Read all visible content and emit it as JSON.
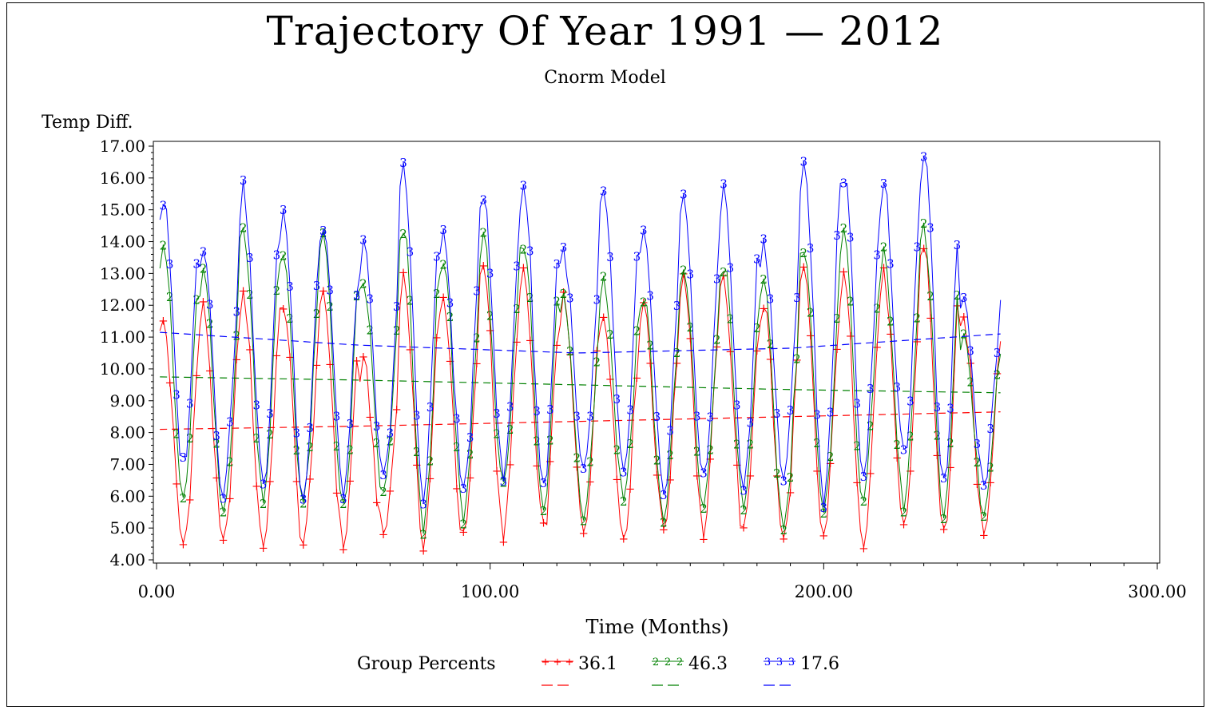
{
  "chart_data": {
    "type": "line",
    "title": "Trajectory Of Year 1991 — 2012",
    "subtitle": "Cnorm Model",
    "ylabel": "Temp Diff.",
    "xlabel": "Time (Months)",
    "xlim": [
      0,
      300
    ],
    "ylim": [
      4,
      17
    ],
    "xticks": [
      "0.00",
      "100.00",
      "200.00",
      "300.00"
    ],
    "yticks": [
      "4.00",
      "5.00",
      "6.00",
      "7.00",
      "8.00",
      "9.00",
      "10.00",
      "11.00",
      "12.00",
      "13.00",
      "14.00",
      "15.00",
      "16.00",
      "17.00"
    ],
    "legend_title": "Group Percents",
    "n_months": 253,
    "series": [
      {
        "name": "36.1",
        "group": 1,
        "marker": "+",
        "color": "#ff0000",
        "trend": [
          [
            1,
            8.1
          ],
          [
            60,
            8.2
          ],
          [
            126,
            8.35
          ],
          [
            190,
            8.5
          ],
          [
            253,
            8.65
          ]
        ],
        "annual_max": [
          11.5,
          11.9,
          12.3,
          12.1,
          12.2,
          10.1,
          12.9,
          12.2,
          13.3,
          12.9,
          12.1,
          11.8,
          12.1,
          13.0,
          12.8,
          12.1,
          13.0,
          12.8,
          12.9,
          14.0,
          11.5
        ],
        "annual_min": [
          4.5,
          4.4,
          4.5,
          4.5,
          4.5,
          4.8,
          4.6,
          4.6,
          4.8,
          4.9,
          5.0,
          4.8,
          5.0,
          4.9,
          4.8,
          4.6,
          4.7,
          4.7,
          4.9,
          4.8,
          5.0
        ]
      },
      {
        "name": "46.3",
        "group": 2,
        "marker": "2",
        "color": "#008000",
        "trend": [
          [
            1,
            9.75
          ],
          [
            60,
            9.65
          ],
          [
            126,
            9.5
          ],
          [
            190,
            9.35
          ],
          [
            253,
            9.25
          ]
        ],
        "annual_max": [
          14.0,
          13.0,
          14.4,
          13.6,
          14.2,
          12.7,
          14.4,
          13.3,
          14.0,
          14.1,
          12.2,
          12.8,
          12.3,
          13.0,
          13.3,
          12.5,
          14.0,
          14.2,
          13.5,
          14.3,
          11.0
        ],
        "annual_min": [
          5.9,
          5.5,
          6.1,
          5.8,
          5.5,
          6.0,
          5.0,
          5.4,
          6.1,
          5.8,
          5.5,
          6.0,
          5.4,
          5.7,
          5.7,
          5.1,
          5.3,
          5.8,
          5.8,
          5.6,
          5.6
        ]
      },
      {
        "name": "17.6",
        "group": 3,
        "marker": "3",
        "color": "#0000ff",
        "trend": [
          [
            1,
            11.15
          ],
          [
            60,
            10.75
          ],
          [
            126,
            10.5
          ],
          [
            190,
            10.65
          ],
          [
            253,
            11.1
          ]
        ],
        "annual_max": [
          15.3,
          14.0,
          15.6,
          14.9,
          14.5,
          13.8,
          16.2,
          14.1,
          15.6,
          15.8,
          13.7,
          15.6,
          14.1,
          15.3,
          15.6,
          14.0,
          16.6,
          16.2,
          15.7,
          16.7,
          12.3
        ],
        "annual_min": [
          7.0,
          6.2,
          6.4,
          6.1,
          6.2,
          6.5,
          6.1,
          6.2,
          6.6,
          6.3,
          6.7,
          6.6,
          6.2,
          6.4,
          6.3,
          6.6,
          6.0,
          6.8,
          7.2,
          6.5,
          6.5
        ]
      }
    ]
  }
}
